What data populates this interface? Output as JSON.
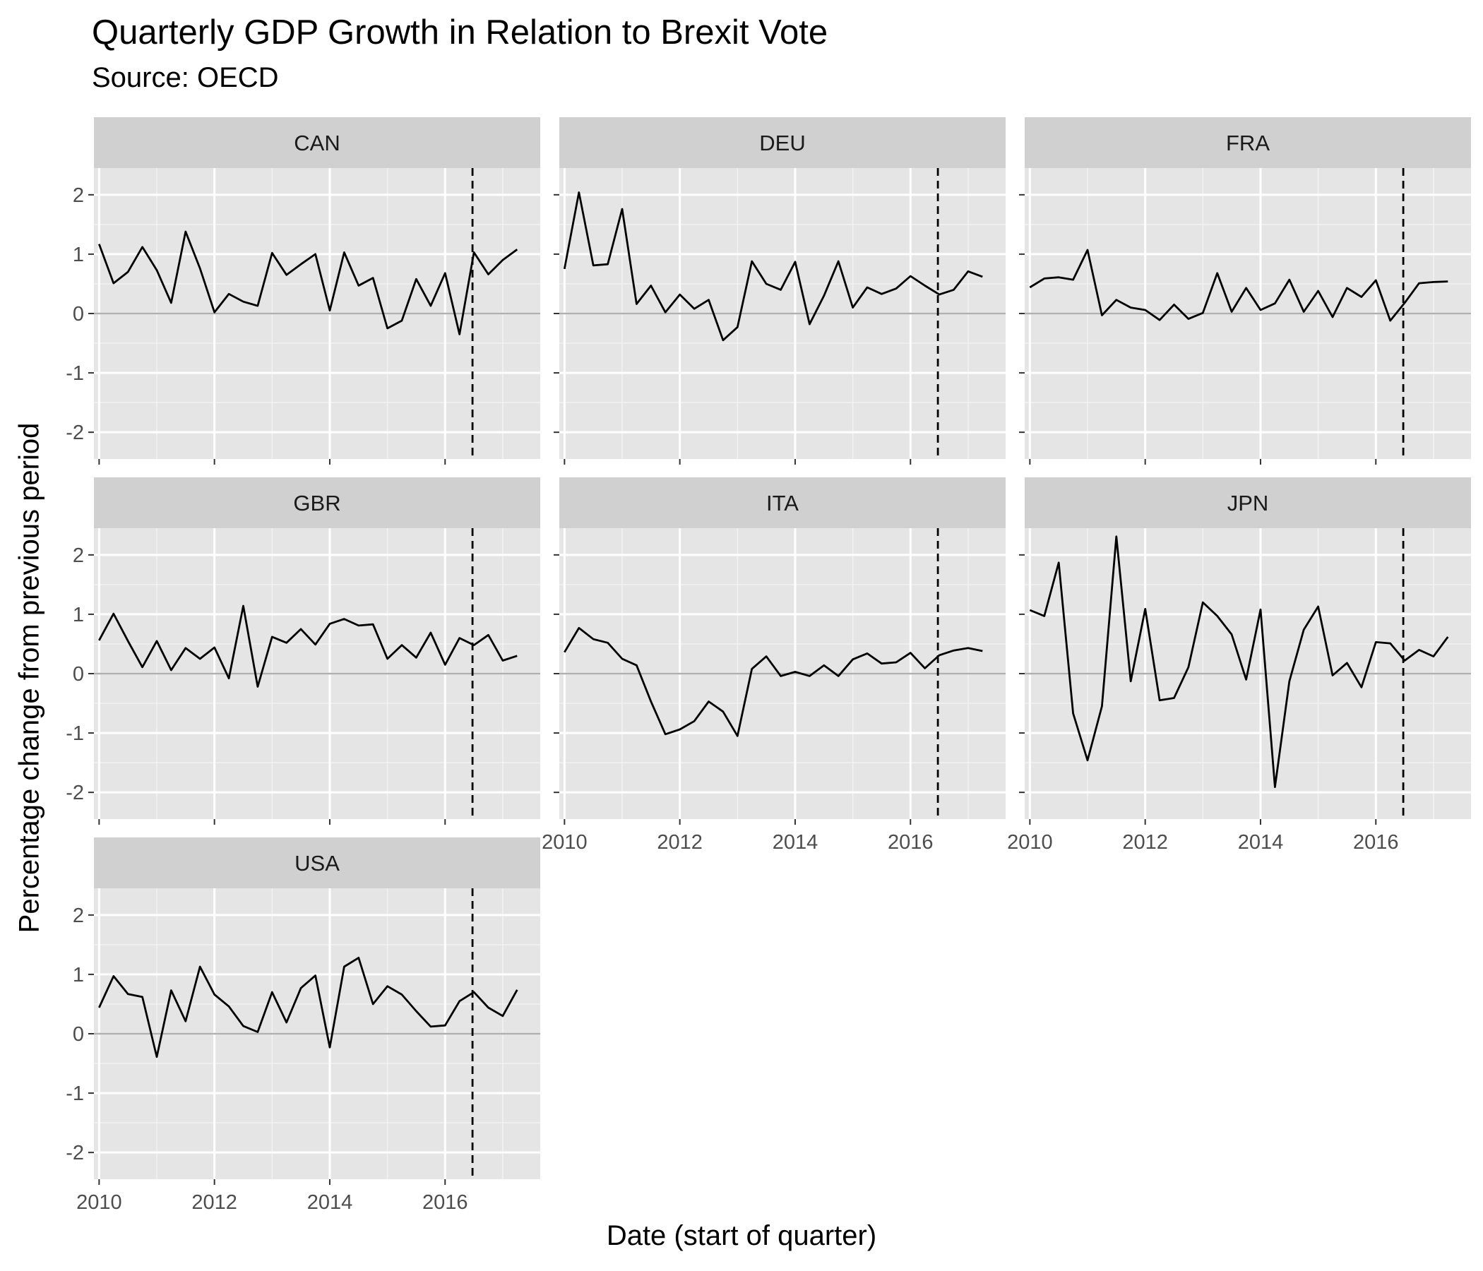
{
  "chart_data": {
    "type": "line",
    "title": "Quarterly GDP Growth in Relation to Brexit Vote",
    "subtitle": "Source: OECD",
    "xlabel": "Date (start of quarter)",
    "ylabel": "Percentage change from previous period",
    "ylim": [
      -2,
      2
    ],
    "y_ticks": [
      2,
      1,
      0,
      -1,
      -2
    ],
    "y_tick_labels": [
      "2",
      "1",
      "0",
      "-1",
      "-2"
    ],
    "x_ticks": [
      2010,
      2012,
      2014,
      2016
    ],
    "x_tick_labels": [
      "2010",
      "2012",
      "2014",
      "2016"
    ],
    "x_start": "2010 Q1",
    "x_end": "2017 Q2",
    "reference_line_date": "2016-06-23",
    "grid": true,
    "line_color": "#000000",
    "panel_background": "#e5e5e5",
    "strip_background": "#d0d0d0",
    "zero_line_color": "#b0b0b0",
    "quarters": [
      "2010 Q1",
      "2010 Q2",
      "2010 Q3",
      "2010 Q4",
      "2011 Q1",
      "2011 Q2",
      "2011 Q3",
      "2011 Q4",
      "2012 Q1",
      "2012 Q2",
      "2012 Q3",
      "2012 Q4",
      "2013 Q1",
      "2013 Q2",
      "2013 Q3",
      "2013 Q4",
      "2014 Q1",
      "2014 Q2",
      "2014 Q3",
      "2014 Q4",
      "2015 Q1",
      "2015 Q2",
      "2015 Q3",
      "2015 Q4",
      "2016 Q1",
      "2016 Q2",
      "2016 Q3",
      "2016 Q4",
      "2017 Q1",
      "2017 Q2"
    ],
    "panels": [
      {
        "name": "CAN",
        "values": [
          1.17,
          0.51,
          0.7,
          1.12,
          0.73,
          0.18,
          1.38,
          0.76,
          0.02,
          0.33,
          0.2,
          0.13,
          1.02,
          0.65,
          0.83,
          1.0,
          0.05,
          1.03,
          0.47,
          0.6,
          -0.25,
          -0.12,
          0.58,
          0.13,
          0.68,
          -0.35,
          1.03,
          0.66,
          0.9,
          1.08
        ]
      },
      {
        "name": "DEU",
        "values": [
          0.75,
          2.04,
          0.81,
          0.83,
          1.76,
          0.16,
          0.47,
          0.02,
          0.32,
          0.08,
          0.23,
          -0.45,
          -0.23,
          0.88,
          0.5,
          0.4,
          0.87,
          -0.18,
          0.3,
          0.88,
          0.1,
          0.44,
          0.33,
          0.42,
          0.63,
          0.47,
          0.32,
          0.4,
          0.71,
          0.62
        ]
      },
      {
        "name": "FRA",
        "values": [
          0.44,
          0.59,
          0.61,
          0.57,
          1.07,
          -0.03,
          0.23,
          0.1,
          0.06,
          -0.11,
          0.15,
          -0.09,
          0.01,
          0.68,
          0.03,
          0.43,
          0.06,
          0.17,
          0.57,
          0.03,
          0.38,
          -0.06,
          0.43,
          0.28,
          0.56,
          -0.12,
          0.18,
          0.51,
          0.53,
          0.54
        ]
      },
      {
        "name": "GBR",
        "values": [
          0.56,
          1.01,
          0.55,
          0.11,
          0.55,
          0.06,
          0.43,
          0.25,
          0.44,
          -0.08,
          1.14,
          -0.22,
          0.62,
          0.52,
          0.75,
          0.49,
          0.84,
          0.92,
          0.81,
          0.83,
          0.25,
          0.48,
          0.27,
          0.69,
          0.15,
          0.6,
          0.48,
          0.65,
          0.22,
          0.3
        ]
      },
      {
        "name": "ITA",
        "values": [
          0.36,
          0.77,
          0.58,
          0.52,
          0.25,
          0.14,
          -0.47,
          -1.02,
          -0.94,
          -0.8,
          -0.47,
          -0.64,
          -1.05,
          0.08,
          0.29,
          -0.04,
          0.03,
          -0.04,
          0.14,
          -0.04,
          0.24,
          0.34,
          0.17,
          0.19,
          0.35,
          0.09,
          0.31,
          0.39,
          0.43,
          0.38
        ]
      },
      {
        "name": "JPN",
        "values": [
          1.07,
          0.97,
          1.87,
          -0.67,
          -1.46,
          -0.55,
          2.31,
          -0.13,
          1.09,
          -0.45,
          -0.41,
          0.11,
          1.2,
          0.97,
          0.66,
          -0.1,
          1.08,
          -1.91,
          -0.13,
          0.74,
          1.13,
          -0.03,
          0.18,
          -0.23,
          0.53,
          0.51,
          0.22,
          0.4,
          0.29,
          0.62
        ]
      },
      {
        "name": "USA",
        "values": [
          0.44,
          0.97,
          0.67,
          0.62,
          -0.39,
          0.73,
          0.21,
          1.13,
          0.66,
          0.46,
          0.13,
          0.03,
          0.7,
          0.19,
          0.77,
          0.98,
          -0.23,
          1.13,
          1.28,
          0.5,
          0.8,
          0.66,
          0.38,
          0.12,
          0.14,
          0.55,
          0.7,
          0.44,
          0.3,
          0.74
        ]
      }
    ]
  }
}
